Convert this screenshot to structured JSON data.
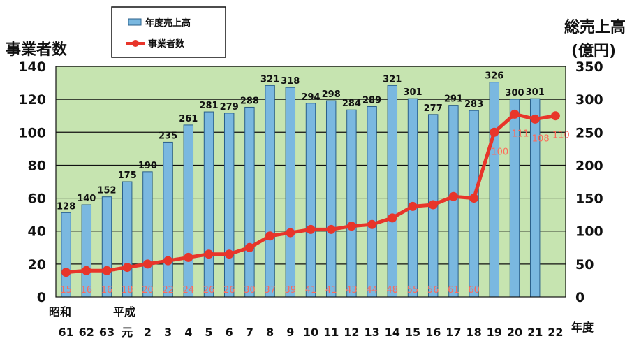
{
  "chart_data": {
    "type": "bar",
    "y_left_title": "事業者数",
    "y_right_title_line1": "総売上高",
    "y_right_title_line2": "(億円)",
    "x_axis_title": "年度",
    "era_labels": [
      "昭和",
      "平成"
    ],
    "categories": [
      "61",
      "62",
      "63",
      "元",
      "2",
      "3",
      "4",
      "5",
      "6",
      "7",
      "8",
      "9",
      "10",
      "11",
      "12",
      "13",
      "14",
      "15",
      "16",
      "17",
      "18",
      "19",
      "20",
      "21",
      "22"
    ],
    "ylim_left": [
      0,
      140
    ],
    "ylim_right": [
      0,
      350
    ],
    "yticks_left": [
      0,
      20,
      40,
      60,
      80,
      100,
      120,
      140
    ],
    "yticks_right": [
      0,
      50,
      100,
      150,
      200,
      250,
      300,
      350
    ],
    "grid": true,
    "legend_position": "top-center",
    "series": [
      {
        "name": "年度売上高",
        "type": "bar",
        "axis": "right",
        "color": "#7ab8e0",
        "values": [
          128,
          140,
          152,
          175,
          190,
          235,
          261,
          281,
          279,
          288,
          321,
          318,
          294,
          298,
          284,
          289,
          321,
          301,
          277,
          291,
          283,
          326,
          300,
          301,
          null
        ]
      },
      {
        "name": "事業者数",
        "type": "line",
        "axis": "left",
        "color": "#e8352a",
        "values": [
          15,
          16,
          16,
          18,
          20,
          22,
          24,
          26,
          26,
          30,
          37,
          39,
          41,
          41,
          43,
          44,
          48,
          55,
          56,
          61,
          60,
          100,
          111,
          108,
          110
        ]
      }
    ],
    "plot_background": "#c6e4b0"
  }
}
